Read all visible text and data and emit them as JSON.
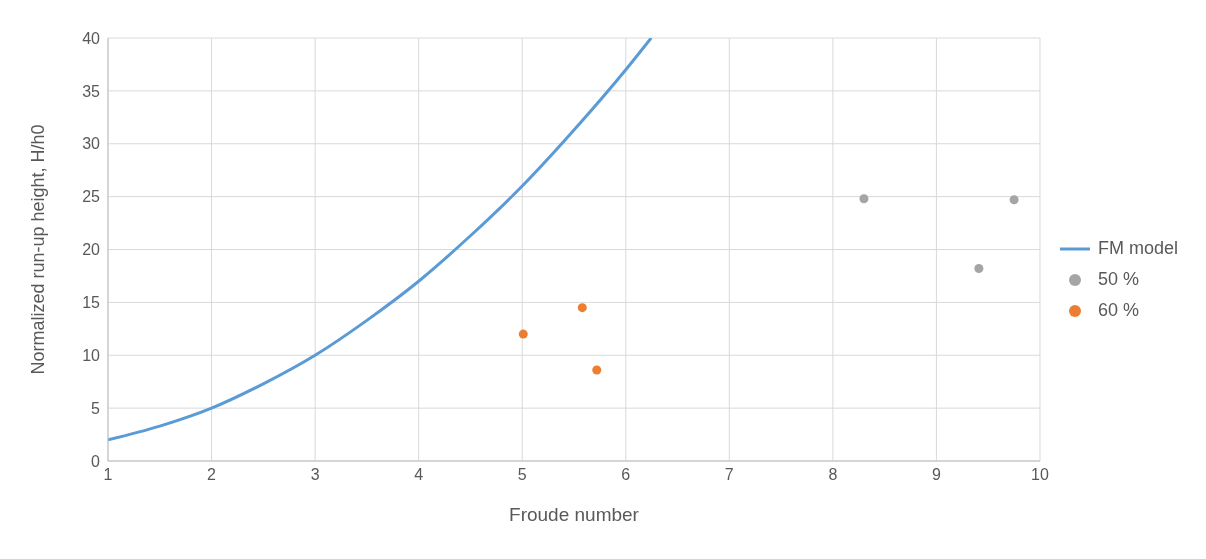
{
  "chart_data": {
    "type": "scatter",
    "xlabel": "Froude number",
    "ylabel": "Normalized run-up height, H/h0",
    "xlim": [
      1,
      10
    ],
    "xticks": [
      1,
      2,
      3,
      4,
      5,
      6,
      7,
      8,
      9,
      10
    ],
    "ylim": [
      0,
      40
    ],
    "yticks": [
      0,
      5,
      10,
      15,
      20,
      25,
      30,
      35,
      40
    ],
    "grid": true,
    "legend": "right",
    "series": [
      {
        "name": "FM model",
        "type": "line",
        "color": "#5b9bd5",
        "marker": "none",
        "x": [
          1,
          1.5,
          2,
          2.5,
          3,
          3.5,
          4,
          4.5,
          5,
          5.5,
          6,
          6.245
        ],
        "values": [
          2,
          3.3,
          5,
          7.3,
          10,
          13.3,
          17,
          21.3,
          26,
          31.3,
          37,
          40
        ]
      },
      {
        "name": "50 %",
        "color": "#a5a5a5",
        "marker": "circle",
        "x": [
          8.3,
          9.41,
          9.75
        ],
        "values": [
          24.8,
          18.2,
          24.7
        ]
      },
      {
        "name": "60 %",
        "color": "#ed7d31",
        "marker": "circle",
        "x": [
          5.01,
          5.58,
          5.72
        ],
        "values": [
          12.0,
          14.5,
          8.6
        ]
      }
    ]
  }
}
